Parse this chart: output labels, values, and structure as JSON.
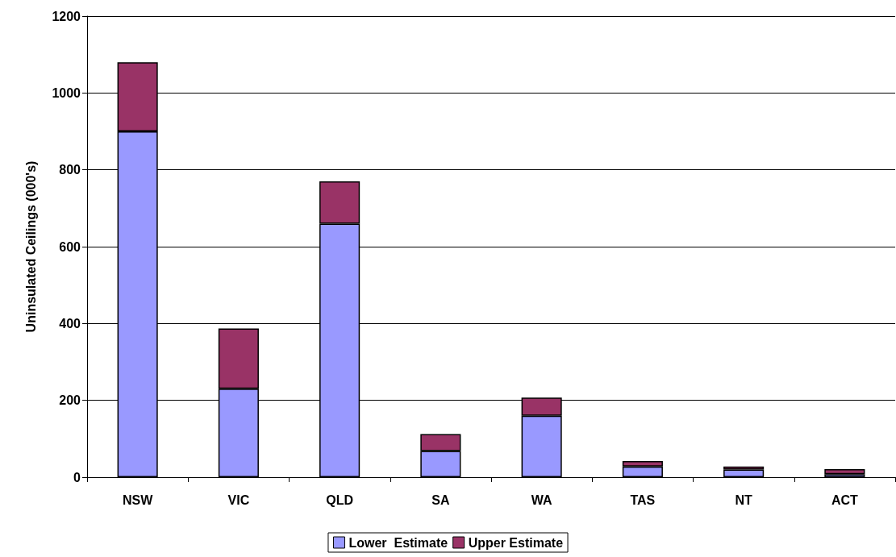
{
  "chart_data": {
    "type": "bar",
    "stacked": true,
    "ylabel": "Uninsulated Ceilings (000's)",
    "categories": [
      "NSW",
      "VIC",
      "QLD",
      "SA",
      "WA",
      "TAS",
      "NT",
      "ACT"
    ],
    "series": [
      {
        "name": "Lower  Estimate",
        "color": "#9999ff",
        "values": [
          900,
          230,
          660,
          68,
          160,
          28,
          20,
          8
        ]
      },
      {
        "name": "Upper Estimate",
        "color": "#993366",
        "values": [
          180,
          157,
          110,
          44,
          47,
          14,
          8,
          13
        ]
      }
    ],
    "ylim": [
      0,
      1200
    ],
    "yticks": [
      0,
      200,
      400,
      600,
      800,
      1000,
      1200
    ],
    "grid": "y",
    "legend": "bottom"
  }
}
